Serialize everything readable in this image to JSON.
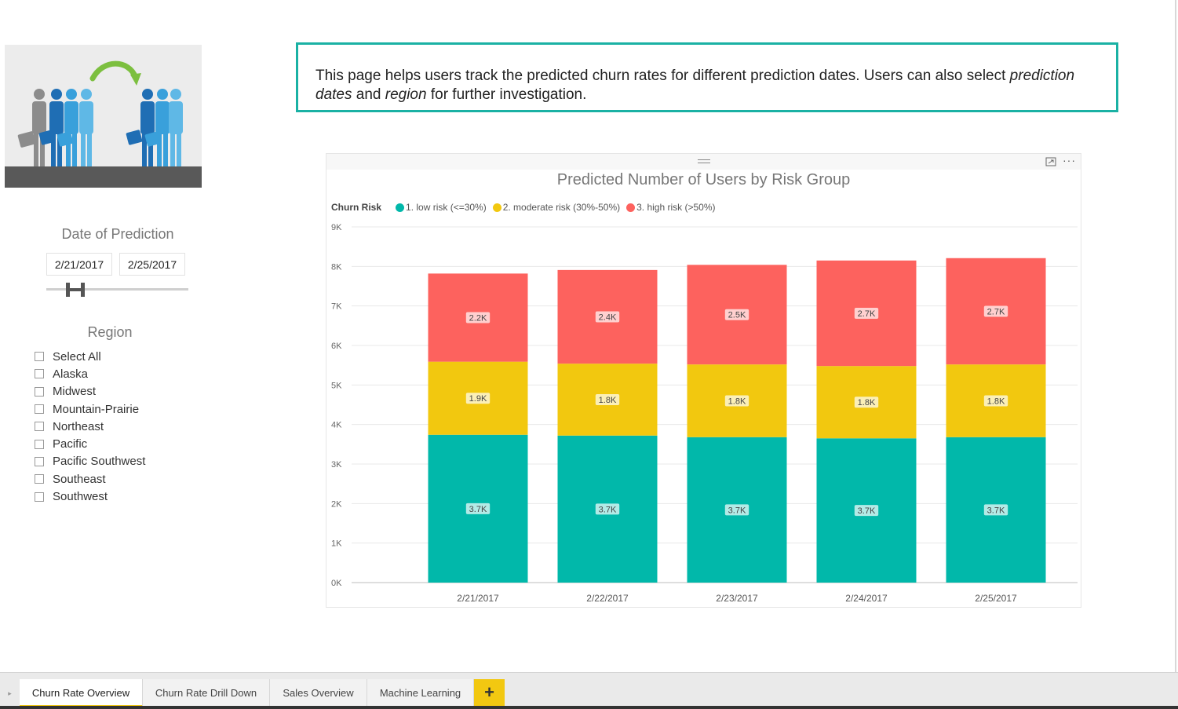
{
  "description": {
    "part1": "This page helps users track the predicted churn rates for different prediction dates. Users can also select ",
    "em1": "prediction dates",
    "part2": " and ",
    "em2": "region",
    "part3": " for further investigation."
  },
  "date_slicer": {
    "title": "Date of Prediction",
    "from": "2/21/2017",
    "to": "2/25/2017"
  },
  "region_slicer": {
    "title": "Region",
    "items": [
      "Select All",
      "Alaska",
      "Midwest",
      "Mountain-Prairie",
      "Northeast",
      "Pacific",
      "Pacific Southwest",
      "Southeast",
      "Southwest"
    ]
  },
  "visual": {
    "focus_icon": "focus-mode-icon",
    "more_icon": "more-options-icon",
    "more_label": "···"
  },
  "chart_data": {
    "type": "bar",
    "stacked": true,
    "title": "Predicted Number of Users by Risk Group",
    "legend_title": "Churn Risk",
    "legend_position": "top-left",
    "categories": [
      "2/21/2017",
      "2/22/2017",
      "2/23/2017",
      "2/24/2017",
      "2/25/2017"
    ],
    "series": [
      {
        "name": "1. low risk (<=30%)",
        "color": "#01b8aa",
        "values": [
          3740,
          3720,
          3680,
          3650,
          3680
        ],
        "labels": [
          "3.7K",
          "3.7K",
          "3.7K",
          "3.7K",
          "3.7K"
        ]
      },
      {
        "name": "2. moderate risk (30%-50%)",
        "color": "#f2c80f",
        "values": [
          1850,
          1820,
          1840,
          1830,
          1840
        ],
        "labels": [
          "1.9K",
          "1.8K",
          "1.8K",
          "1.8K",
          "1.8K"
        ]
      },
      {
        "name": "3. high risk (>50%)",
        "color": "#fd625e",
        "values": [
          2230,
          2370,
          2520,
          2670,
          2690
        ],
        "labels": [
          "2.2K",
          "2.4K",
          "2.5K",
          "2.7K",
          "2.7K"
        ]
      }
    ],
    "y_ticks": [
      "0K",
      "1K",
      "2K",
      "3K",
      "4K",
      "5K",
      "6K",
      "7K",
      "8K",
      "9K"
    ],
    "ylim": [
      0,
      9000
    ],
    "grid": true
  },
  "tabs": [
    {
      "label": "Churn Rate Overview",
      "active": true
    },
    {
      "label": "Churn Rate Drill Down",
      "active": false
    },
    {
      "label": "Sales Overview",
      "active": false
    },
    {
      "label": "Machine Learning",
      "active": false
    }
  ],
  "add_tab_label": "+",
  "scroll_left_icon": "▸"
}
